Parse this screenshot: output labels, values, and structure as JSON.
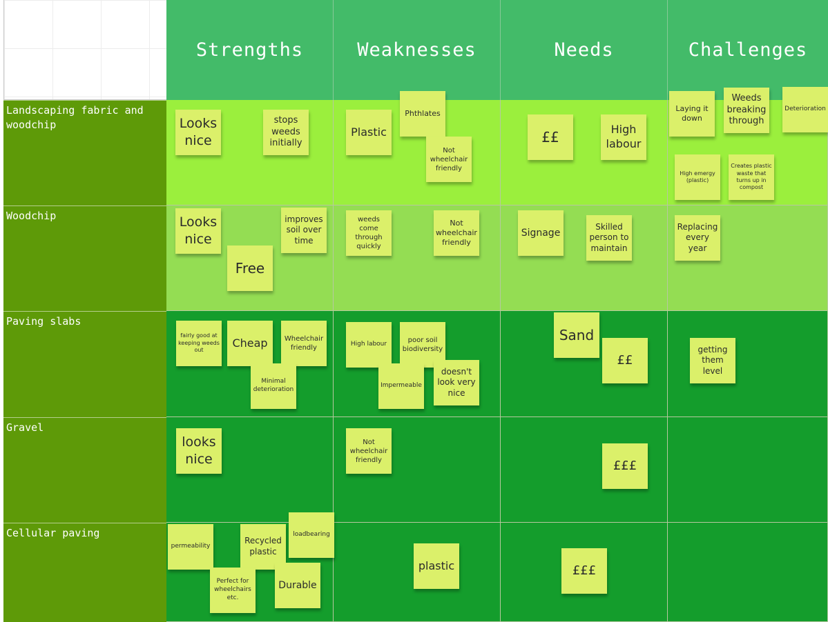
{
  "columns": [
    "Strengths",
    "Weaknesses",
    "Needs",
    "Challenges"
  ],
  "rows": [
    "Landscaping fabric and woodchip",
    "Woodchip",
    "Paving slabs",
    "Gravel",
    "Cellular paving"
  ],
  "colors": {
    "header": "#43bb69",
    "row_label": "#5e9a08",
    "row1_cells": "#9bef3d",
    "row2_cells": "#94dd53",
    "rows_3_to_5_cells": "#149d2c",
    "sticky_note": "#dbf06a"
  },
  "notes": {
    "r1_strengths": [
      "Looks nice",
      "stops weeds initially"
    ],
    "r1_weaknesses": [
      "Plastic",
      "Phthlates",
      "Not wheelchair friendly"
    ],
    "r1_needs": [
      "££",
      "High labour"
    ],
    "r1_challenges": [
      "Laying it down",
      "Weeds breaking through",
      "Deterioration",
      "High emergy (plastic)",
      "Creates plastic waste that turns up in compost"
    ],
    "r2_strengths": [
      "Looks nice",
      "improves soil over time",
      "Free"
    ],
    "r2_weaknesses": [
      "weeds come through quickly",
      "Not wheelchair friendly"
    ],
    "r2_needs": [
      "Signage",
      "Skilled person to maintain"
    ],
    "r2_challenges": [
      "Replacing every year"
    ],
    "r3_strengths": [
      "fairly good at keeping weeds out",
      "Cheap",
      "Wheelchair friendly",
      "Minimal deterioration"
    ],
    "r3_weaknesses": [
      "High labour",
      "poor soil biodiversity",
      "Impermeable",
      "doesn't look very nice"
    ],
    "r3_needs": [
      "Sand",
      "££"
    ],
    "r3_challenges": [
      "getting them level"
    ],
    "r4_strengths": [
      "looks nice"
    ],
    "r4_weaknesses": [
      "Not wheelchair friendly"
    ],
    "r4_needs": [
      "£££"
    ],
    "r5_strengths": [
      "permeability",
      "Recycled plastic",
      "loadbearing",
      "Perfect for wheelchairs etc.",
      "Durable"
    ],
    "r5_weaknesses": [
      "plastic"
    ],
    "r5_needs": [
      "£££"
    ]
  }
}
